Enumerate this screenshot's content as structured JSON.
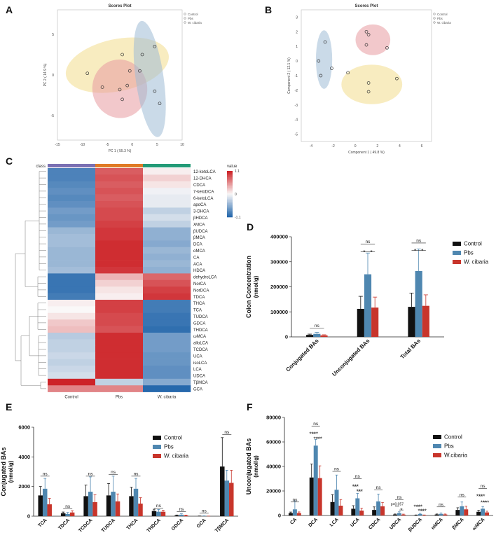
{
  "panel_labels": {
    "a": "A",
    "b": "B",
    "c": "C",
    "d": "D",
    "e": "E",
    "f": "F"
  },
  "colors": {
    "control": "#111111",
    "pbs": "#4f87b0",
    "wcibaria": "#c8352b",
    "ellipse_control": "#f2dc8c",
    "ellipse_pbs": "#e89aa0",
    "ellipse_wcibaria": "#9fbcd6",
    "class_control": "#7b70b3",
    "class_pbs": "#e07b25",
    "class_wcibaria": "#239a77"
  },
  "chart_data": [
    {
      "id": "A",
      "type": "scatter",
      "title": "Scores Plot",
      "xlabel": "PC 1 ( 55.3 %)",
      "ylabel": "PC 2 ( 14.9 %)",
      "xlim": [
        -15,
        10
      ],
      "ylim": [
        -8,
        8
      ],
      "xticks": [
        "-15",
        "-10",
        "-5",
        "0",
        "5",
        "10"
      ],
      "yticks": [
        "5",
        "0",
        "-5"
      ],
      "ytick_values": [
        5,
        0,
        -5
      ],
      "legend": [
        "Control",
        "Pbs",
        "W. cibaria"
      ],
      "series": [
        {
          "name": "Control",
          "points": [
            [
              -9,
              0.2
            ],
            [
              -2,
              2.5
            ],
            [
              2,
              2.5
            ],
            [
              -0.5,
              0.5
            ]
          ]
        },
        {
          "name": "Pbs",
          "points": [
            [
              -6,
              -1.5
            ],
            [
              -2,
              -3
            ],
            [
              -1,
              -1.3
            ],
            [
              -2.5,
              -1.8
            ]
          ]
        },
        {
          "name": "W. cibaria",
          "points": [
            [
              4.5,
              3.5
            ],
            [
              1.5,
              0.5
            ],
            [
              4.5,
              -2
            ],
            [
              5.5,
              -3.5
            ]
          ]
        }
      ]
    },
    {
      "id": "B",
      "type": "scatter",
      "title": "Scores Plot",
      "xlabel": "Component 1 ( 49.8 %)",
      "ylabel": "Component 2 ( 12.1 %)",
      "xlim": [
        -5,
        7
      ],
      "ylim": [
        -5.5,
        3.5
      ],
      "xticks": [
        "-4",
        "-2",
        "0",
        "2",
        "4",
        "6"
      ],
      "yticks": [
        "3",
        "2",
        "1",
        "0",
        "-1",
        "-2",
        "-3",
        "-4",
        "-5"
      ],
      "ytick_values": [
        3,
        2,
        1,
        0,
        -1,
        -2,
        -3,
        -4,
        -5
      ],
      "legend": [
        "Control",
        "Pbs",
        "W. cibaria"
      ],
      "series": [
        {
          "name": "Control",
          "points": [
            [
              -0.7,
              -0.8
            ],
            [
              1.2,
              -1.5
            ],
            [
              1.2,
              -2.1
            ],
            [
              3.8,
              -1.2
            ]
          ]
        },
        {
          "name": "Pbs",
          "points": [
            [
              1.0,
              2.0
            ],
            [
              1.2,
              1.8
            ],
            [
              1.0,
              1.1
            ],
            [
              2.9,
              0.9
            ]
          ]
        },
        {
          "name": "W. cibaria",
          "points": [
            [
              -2.8,
              1.3
            ],
            [
              -3.4,
              0.0
            ],
            [
              -3.2,
              -1.0
            ],
            [
              -2.2,
              -0.5
            ]
          ]
        }
      ]
    },
    {
      "id": "C",
      "type": "heatmap",
      "class_label": "class",
      "legend_title": "value",
      "legend_ticks": [
        "1.1",
        "0",
        "-1.1"
      ],
      "columns": [
        "Control",
        "Pbs",
        "W. cibaria"
      ],
      "rows": [
        "12-ketoLCA",
        "12-DHCA",
        "CDCA",
        "7-ketoDCA",
        "6-ketoLCA",
        "apoCA",
        "3-DHCA",
        "βHDCA",
        "λMCA",
        "βUDCA",
        "βMCA",
        "DCA",
        "αMCA",
        "CA",
        "ACA",
        "HDCA",
        "dehydroLCA",
        "NorCA",
        "NorDCA",
        "TDCA",
        "THCA",
        "TCA",
        "TUDCA",
        "GDCA",
        "THDCA",
        "ωMCA",
        "alloLCA",
        "TCDCA",
        "UCA",
        "isoLCA",
        "LCA",
        "UDCA",
        "TβMCA",
        "GCA"
      ],
      "values": [
        [
          -0.9,
          0.8,
          0.05
        ],
        [
          -0.9,
          0.85,
          0.2
        ],
        [
          -0.85,
          0.8,
          0.1
        ],
        [
          -0.8,
          0.85,
          -0.05
        ],
        [
          -0.85,
          0.8,
          -0.1
        ],
        [
          -0.8,
          0.85,
          -0.1
        ],
        [
          -0.7,
          0.9,
          -0.3
        ],
        [
          -0.75,
          0.9,
          -0.2
        ],
        [
          -0.7,
          0.95,
          -0.3
        ],
        [
          -0.5,
          1.0,
          -0.55
        ],
        [
          -0.45,
          1.0,
          -0.55
        ],
        [
          -0.45,
          1.05,
          -0.6
        ],
        [
          -0.5,
          1.05,
          -0.5
        ],
        [
          -0.5,
          1.05,
          -0.55
        ],
        [
          -0.5,
          1.05,
          -0.5
        ],
        [
          -0.45,
          1.0,
          -0.55
        ],
        [
          -1.0,
          0.35,
          0.75
        ],
        [
          -1.0,
          0.2,
          0.85
        ],
        [
          -1.0,
          0.1,
          0.95
        ],
        [
          -0.95,
          0.05,
          1.0
        ],
        [
          0.05,
          0.95,
          -0.95
        ],
        [
          0.0,
          0.95,
          -0.95
        ],
        [
          0.1,
          0.9,
          -1.0
        ],
        [
          0.25,
          0.9,
          -1.0
        ],
        [
          0.3,
          0.85,
          -1.05
        ],
        [
          -0.35,
          1.05,
          -0.7
        ],
        [
          -0.3,
          1.05,
          -0.7
        ],
        [
          -0.3,
          1.05,
          -0.7
        ],
        [
          -0.25,
          1.05,
          -0.75
        ],
        [
          -0.3,
          1.05,
          -0.75
        ],
        [
          -0.25,
          1.05,
          -0.8
        ],
        [
          -0.2,
          1.05,
          -0.8
        ],
        [
          1.1,
          -0.3,
          -0.6
        ],
        [
          0.6,
          0.6,
          -1.1
        ]
      ]
    },
    {
      "id": "D",
      "type": "bar",
      "ylabel": "Colon Concentration",
      "ylabel2": "(nmol/g)",
      "ylim": [
        0,
        400000
      ],
      "yticks": [
        "0",
        "100000",
        "200000",
        "300000",
        "400000"
      ],
      "ytick_values": [
        0,
        100000,
        200000,
        300000,
        400000
      ],
      "categories": [
        "Conjugated BAs",
        "Unconjugated BAs",
        "Total BAs"
      ],
      "series": [
        {
          "name": "Control",
          "values": [
            8000,
            112000,
            120000
          ],
          "errors": [
            3000,
            50000,
            55000
          ]
        },
        {
          "name": "Pbs",
          "values": [
            12000,
            250000,
            263000
          ],
          "errors": [
            6000,
            85000,
            88000
          ]
        },
        {
          "name": "W. cibaria",
          "values": [
            6000,
            117000,
            124000
          ],
          "errors": [
            2500,
            42000,
            44000
          ]
        }
      ],
      "legend": [
        "Control",
        "Pbs",
        "W. cibaria"
      ],
      "annotations": [
        {
          "category": 0,
          "text": "ns",
          "y": 35000
        },
        {
          "category": 1,
          "text": "ns",
          "y": 370000
        },
        {
          "category": 1,
          "text": "*",
          "pair": [
            0,
            1
          ],
          "y": 340000
        },
        {
          "category": 1,
          "text": "*",
          "pair": [
            1,
            2
          ],
          "y": 340000
        },
        {
          "category": 2,
          "text": "ns",
          "y": 375000
        },
        {
          "category": 2,
          "text": "*",
          "pair": [
            0,
            1
          ],
          "y": 345000
        },
        {
          "category": 2,
          "text": "*",
          "pair": [
            1,
            2
          ],
          "y": 345000
        }
      ]
    },
    {
      "id": "E",
      "type": "bar",
      "ylabel": "Conjugated BAs",
      "ylabel2": "(nmol/g)",
      "ylim": [
        0,
        6000
      ],
      "yticks": [
        "0",
        "2000",
        "4000",
        "6000"
      ],
      "ytick_values": [
        0,
        2000,
        4000,
        6000
      ],
      "categories": [
        "TCA",
        "TDCA",
        "TCDCA",
        "TUDCA",
        "THCA",
        "THDCA",
        "GDCA",
        "GCA",
        "TβMCA"
      ],
      "series": [
        {
          "name": "Control",
          "values": [
            1400,
            200,
            1350,
            1400,
            1350,
            350,
            50,
            10,
            3350
          ],
          "errors": [
            600,
            80,
            750,
            800,
            600,
            120,
            30,
            5,
            1950
          ]
        },
        {
          "name": "Pbs",
          "values": [
            1850,
            150,
            1650,
            1650,
            1850,
            300,
            100,
            15,
            2400
          ],
          "errors": [
            700,
            100,
            1000,
            1050,
            700,
            150,
            60,
            8,
            700
          ]
        },
        {
          "name": "W. cibaria",
          "values": [
            800,
            250,
            950,
            1000,
            850,
            300,
            50,
            5,
            2250
          ],
          "errors": [
            400,
            120,
            500,
            500,
            400,
            100,
            25,
            3,
            850
          ]
        }
      ],
      "legend": [
        "Control",
        "Pbs",
        "W. cibaria"
      ],
      "annotations": [
        {
          "category": 0,
          "text": "ns",
          "y": 2700
        },
        {
          "category": 1,
          "text": "ns",
          "y": 500
        },
        {
          "category": 2,
          "text": "ns",
          "y": 2700
        },
        {
          "category": 3,
          "text": "ns",
          "y": 2800
        },
        {
          "category": 4,
          "text": "ns",
          "y": 2700
        },
        {
          "category": 5,
          "text": "ns",
          "y": 550
        },
        {
          "category": 6,
          "text": "ns",
          "y": 300
        },
        {
          "category": 7,
          "text": "ns",
          "y": 200
        },
        {
          "category": 8,
          "text": "ns",
          "y": 5500
        }
      ]
    },
    {
      "id": "F",
      "type": "bar",
      "ylabel": "Unconjugated BAs",
      "ylabel2": "(nmol/g)",
      "ylim": [
        0,
        80000
      ],
      "yticks": [
        "0",
        "20000",
        "40000",
        "60000",
        "80000"
      ],
      "ytick_values": [
        0,
        20000,
        40000,
        60000,
        80000
      ],
      "categories": [
        "CA",
        "DCA",
        "LCA",
        "UCA",
        "CDCA",
        "UDCA",
        "βUDCA",
        "αMCA",
        "βMCA",
        "ωMCA"
      ],
      "series": [
        {
          "name": "Control",
          "values": [
            2000,
            31000,
            11000,
            5500,
            4500,
            800,
            300,
            800,
            4500,
            3000
          ],
          "errors": [
            800,
            11000,
            6000,
            2500,
            2500,
            400,
            150,
            400,
            1800,
            1200
          ]
        },
        {
          "name": "Pbs",
          "values": [
            5000,
            57000,
            21000,
            14000,
            11500,
            2000,
            1200,
            1300,
            7500,
            5500
          ],
          "errors": [
            7000,
            5000,
            12000,
            4000,
            6000,
            1000,
            500,
            800,
            3500,
            1800
          ]
        },
        {
          "name": "W. cibaria",
          "values": [
            2000,
            30500,
            8000,
            4000,
            7500,
            700,
            300,
            800,
            5000,
            2500
          ],
          "errors": [
            900,
            10000,
            5000,
            2000,
            3000,
            400,
            150,
            400,
            2500,
            1000
          ]
        }
      ],
      "legend": [
        "Control",
        "Pbs",
        "W.cibaria"
      ],
      "annotations": [
        {
          "category": 0,
          "text": "ns",
          "y": 11000
        },
        {
          "category": 1,
          "text": "ns",
          "y": 73000
        },
        {
          "category": 1,
          "text": "****",
          "pair": [
            0,
            1
          ],
          "y": 67000
        },
        {
          "category": 1,
          "text": "****",
          "pair": [
            1,
            2
          ],
          "y": 63000
        },
        {
          "category": 2,
          "text": "ns",
          "y": 36000
        },
        {
          "category": 3,
          "text": "ns",
          "y": 30000
        },
        {
          "category": 3,
          "text": "***",
          "pair": [
            0,
            1
          ],
          "y": 24000
        },
        {
          "category": 3,
          "text": "***",
          "pair": [
            1,
            2
          ],
          "y": 20000
        },
        {
          "category": 4,
          "text": "ns",
          "y": 21000
        },
        {
          "category": 5,
          "text": "ns",
          "y": 13000
        },
        {
          "category": 5,
          "text": "p=0.057",
          "pair": [
            0,
            1
          ],
          "y": 7500
        },
        {
          "category": 5,
          "text": "*",
          "pair": [
            1,
            2
          ],
          "y": 4500
        },
        {
          "category": 6,
          "text": "****",
          "pair": [
            0,
            1
          ],
          "y": 7500
        },
        {
          "category": 6,
          "text": "****",
          "pair": [
            1,
            2
          ],
          "y": 4000
        },
        {
          "category": 7,
          "text": "ns",
          "y": 7000
        },
        {
          "category": 8,
          "text": "ns",
          "y": 15000
        },
        {
          "category": 9,
          "text": "ns",
          "y": 22000
        },
        {
          "category": 9,
          "text": "****",
          "pair": [
            0,
            1
          ],
          "y": 16000
        },
        {
          "category": 9,
          "text": "****",
          "pair": [
            1,
            2
          ],
          "y": 11000
        }
      ]
    }
  ]
}
